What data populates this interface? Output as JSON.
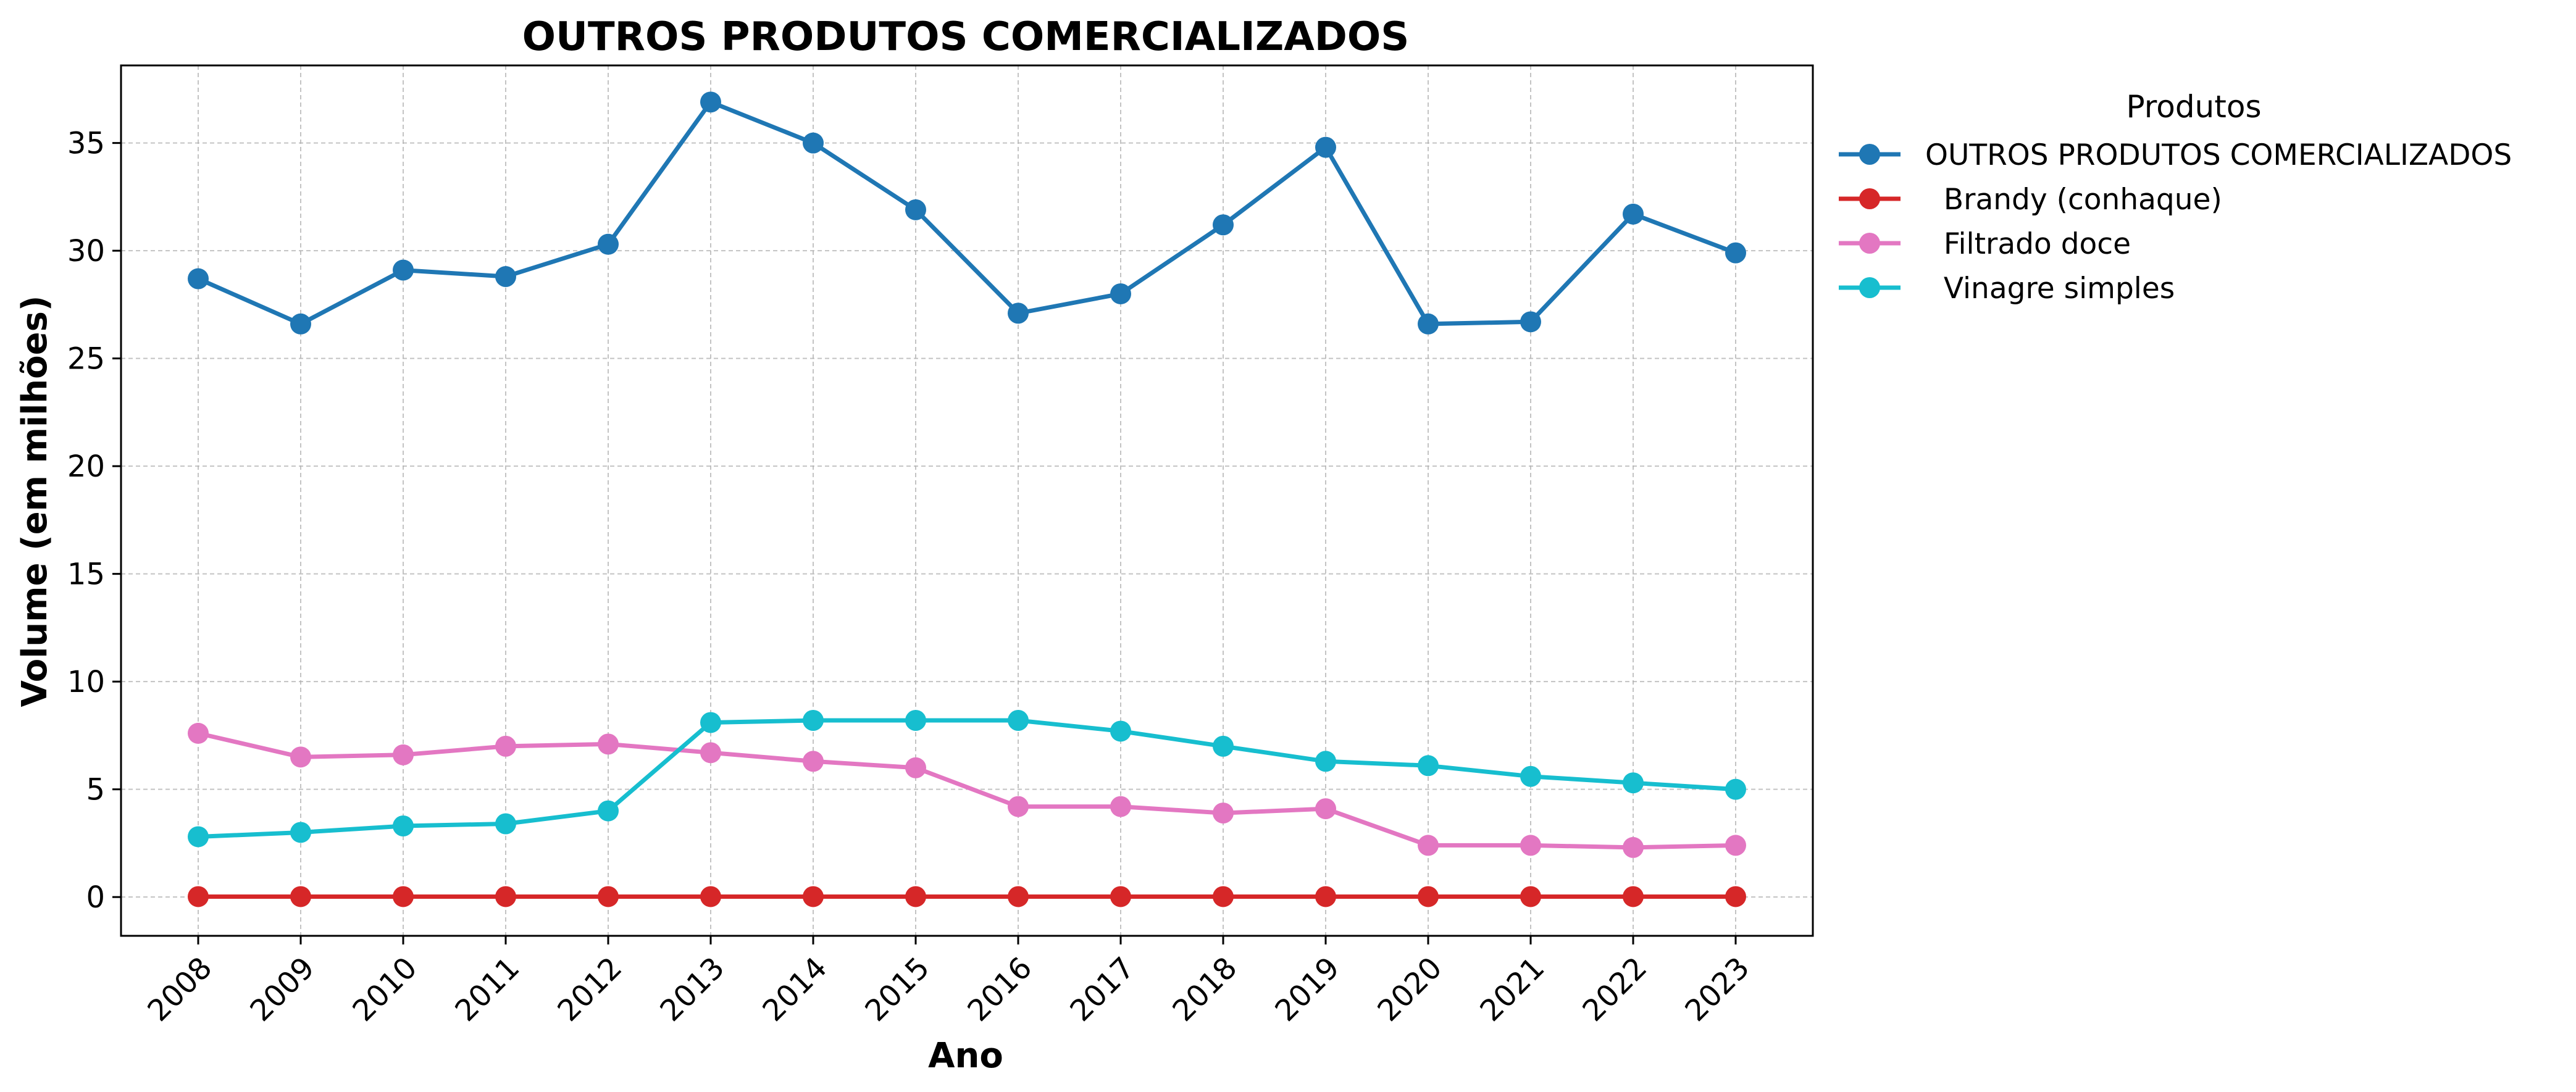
{
  "chart_data": {
    "type": "line",
    "title": "OUTROS PRODUTOS COMERCIALIZADOS",
    "xlabel": "Ano",
    "ylabel": "Volume (em milhões)",
    "x": [
      "2008",
      "2009",
      "2010",
      "2011",
      "2012",
      "2013",
      "2014",
      "2015",
      "2016",
      "2017",
      "2018",
      "2019",
      "2020",
      "2021",
      "2022",
      "2023"
    ],
    "ylim": [
      -1.8,
      38.6
    ],
    "yticks": [
      "0",
      "5",
      "10",
      "15",
      "20",
      "25",
      "30",
      "35"
    ],
    "ytick_values": [
      0,
      5,
      10,
      15,
      20,
      25,
      30,
      35
    ],
    "grid": true,
    "legend": {
      "title": "Produtos",
      "placement": "outside-top-right"
    },
    "series": [
      {
        "name": "OUTROS PRODUTOS COMERCIALIZADOS",
        "color": "#1f77b4",
        "values": [
          28.7,
          26.6,
          29.1,
          28.8,
          30.3,
          36.9,
          35.0,
          31.9,
          27.1,
          28.0,
          31.2,
          34.8,
          26.6,
          26.7,
          31.7,
          29.9
        ]
      },
      {
        "name": "  Brandy (conhaque)",
        "color": "#d62728",
        "values": [
          0.02,
          0.02,
          0.02,
          0.02,
          0.02,
          0.02,
          0.02,
          0.02,
          0.02,
          0.02,
          0.02,
          0.02,
          0.02,
          0.02,
          0.02,
          0.02
        ]
      },
      {
        "name": "  Filtrado doce",
        "color": "#e377c2",
        "values": [
          7.6,
          6.5,
          6.6,
          7.0,
          7.1,
          6.7,
          6.3,
          6.0,
          4.2,
          4.2,
          3.9,
          4.1,
          2.4,
          2.4,
          2.3,
          2.4
        ]
      },
      {
        "name": "  Vinagre simples",
        "color": "#17becf",
        "values": [
          2.8,
          3.0,
          3.3,
          3.4,
          4.0,
          8.1,
          8.2,
          8.2,
          8.2,
          7.7,
          7.0,
          6.3,
          6.1,
          5.6,
          5.3,
          5.0
        ]
      }
    ]
  }
}
